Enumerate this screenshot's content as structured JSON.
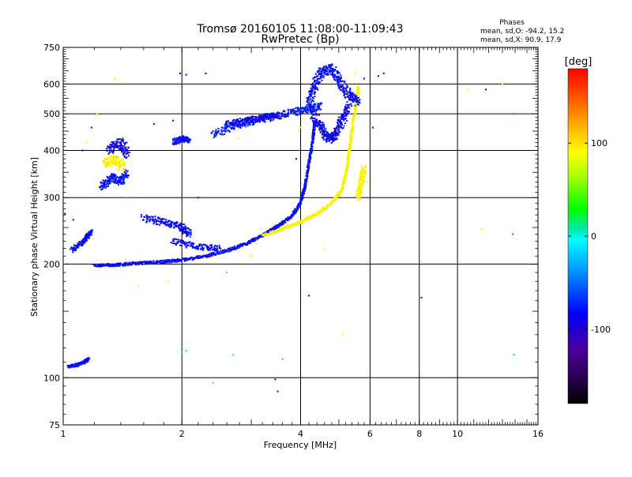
{
  "chart_data": {
    "type": "scatter",
    "title": "Tromsø 20160105 11:08:00-11:09:43",
    "subtitle": "RwPretec (Bp)",
    "xlabel": "Frequency [MHz]",
    "ylabel": "Stationary phase Virtual Height [km]",
    "x_scale": "log",
    "y_scale": "log",
    "xlim": [
      1,
      16
    ],
    "ylim": [
      75,
      750
    ],
    "x_ticks": [
      {
        "value": 1,
        "label": "1"
      },
      {
        "value": 2,
        "label": "2"
      },
      {
        "value": 4,
        "label": "4"
      },
      {
        "value": 6,
        "label": "6"
      },
      {
        "value": 8,
        "label": "8"
      },
      {
        "value": 10,
        "label": "10"
      },
      {
        "value": 16,
        "label": "16"
      }
    ],
    "y_ticks": [
      {
        "value": 75,
        "label": "75"
      },
      {
        "value": 100,
        "label": "100"
      },
      {
        "value": 200,
        "label": "200"
      },
      {
        "value": 300,
        "label": "300"
      },
      {
        "value": 400,
        "label": "400"
      },
      {
        "value": 500,
        "label": "500"
      },
      {
        "value": 600,
        "label": "600"
      },
      {
        "value": 750,
        "label": "750"
      }
    ],
    "grid": true,
    "stats": {
      "heading": "Phases",
      "line_o": "mean, sd,O: -94.2, 15.2",
      "line_x": "mean, sd,X:  90.9, 17.9"
    },
    "colorbar": {
      "label": "[deg]",
      "range": [
        -180,
        180
      ],
      "ticks": [
        {
          "value": 100,
          "label": "100"
        },
        {
          "value": 0,
          "label": "0"
        },
        {
          "value": -100,
          "label": "-100"
        }
      ]
    },
    "traces": [
      {
        "phase": -95,
        "spread": 0.006,
        "points": [
          [
            1.03,
            107
          ],
          [
            1.08,
            108
          ],
          [
            1.13,
            110
          ],
          [
            1.16,
            112
          ]
        ]
      },
      {
        "phase": -95,
        "spread": 0.01,
        "points": [
          [
            1.05,
            218
          ],
          [
            1.13,
            230
          ],
          [
            1.18,
            245
          ]
        ]
      },
      {
        "phase": -95,
        "spread": 0.006,
        "points": [
          [
            1.2,
            198
          ],
          [
            1.35,
            199
          ],
          [
            1.55,
            201
          ],
          [
            1.8,
            203
          ],
          [
            2.0,
            205
          ],
          [
            2.3,
            210
          ],
          [
            2.6,
            217
          ],
          [
            2.9,
            226
          ],
          [
            3.2,
            238
          ],
          [
            3.5,
            252
          ],
          [
            3.8,
            268
          ],
          [
            4.0,
            290
          ],
          [
            4.1,
            320
          ],
          [
            4.2,
            370
          ],
          [
            4.3,
            430
          ],
          [
            4.35,
            480
          ]
        ]
      },
      {
        "phase": 90,
        "spread": 0.006,
        "points": [
          [
            3.2,
            238
          ],
          [
            3.6,
            248
          ],
          [
            4.0,
            258
          ],
          [
            4.4,
            272
          ],
          [
            4.8,
            290
          ],
          [
            5.1,
            315
          ],
          [
            5.25,
            360
          ],
          [
            5.35,
            420
          ],
          [
            5.45,
            480
          ],
          [
            5.55,
            540
          ],
          [
            5.6,
            590
          ]
        ]
      },
      {
        "phase": -98,
        "spread": 0.02,
        "points": [
          [
            4.3,
            500
          ],
          [
            4.5,
            460
          ],
          [
            4.7,
            430
          ],
          [
            4.9,
            440
          ],
          [
            5.1,
            480
          ],
          [
            5.3,
            530
          ]
        ]
      },
      {
        "phase": -95,
        "spread": 0.02,
        "points": [
          [
            4.2,
            520
          ],
          [
            4.3,
            580
          ],
          [
            4.5,
            640
          ],
          [
            4.8,
            660
          ],
          [
            5.0,
            610
          ],
          [
            5.3,
            560
          ],
          [
            5.6,
            540
          ]
        ]
      },
      {
        "phase": -90,
        "spread": 0.015,
        "points": [
          [
            2.4,
            440
          ],
          [
            2.7,
            465
          ],
          [
            3.0,
            478
          ],
          [
            3.4,
            490
          ],
          [
            3.8,
            505
          ],
          [
            4.2,
            515
          ],
          [
            4.5,
            525
          ]
        ]
      },
      {
        "phase": -100,
        "spread": 0.012,
        "points": [
          [
            2.6,
            470
          ],
          [
            2.9,
            480
          ],
          [
            3.2,
            490
          ],
          [
            3.5,
            495
          ]
        ]
      },
      {
        "phase": -92,
        "spread": 0.015,
        "points": [
          [
            1.25,
            320
          ],
          [
            1.33,
            340
          ],
          [
            1.4,
            330
          ],
          [
            1.45,
            350
          ]
        ]
      },
      {
        "phase": -100,
        "spread": 0.02,
        "points": [
          [
            1.3,
            400
          ],
          [
            1.4,
            420
          ],
          [
            1.45,
            390
          ]
        ]
      },
      {
        "phase": 95,
        "spread": 0.02,
        "points": [
          [
            1.28,
            370
          ],
          [
            1.35,
            380
          ],
          [
            1.42,
            360
          ]
        ]
      },
      {
        "phase": -95,
        "spread": 0.012,
        "points": [
          [
            1.9,
            420
          ],
          [
            2.0,
            430
          ],
          [
            2.1,
            425
          ]
        ]
      },
      {
        "phase": -95,
        "spread": 0.015,
        "points": [
          [
            1.6,
            265
          ],
          [
            1.8,
            258
          ],
          [
            2.0,
            250
          ],
          [
            2.1,
            240
          ]
        ]
      },
      {
        "phase": -95,
        "spread": 0.012,
        "points": [
          [
            1.9,
            230
          ],
          [
            2.2,
            222
          ],
          [
            2.5,
            220
          ]
        ]
      },
      {
        "phase": 90,
        "spread": 0.015,
        "points": [
          [
            5.6,
            300
          ],
          [
            5.7,
            330
          ],
          [
            5.8,
            360
          ]
        ]
      }
    ],
    "scattered_points": [
      [
        1.35,
        620,
        80
      ],
      [
        1.98,
        640,
        -95
      ],
      [
        2.05,
        635,
        -95
      ],
      [
        1.7,
        470,
        -95
      ],
      [
        1.9,
        480,
        -95
      ],
      [
        1.22,
        500,
        90
      ],
      [
        1.18,
        460,
        -95
      ],
      [
        1.15,
        420,
        90
      ],
      [
        1.12,
        400,
        -95
      ],
      [
        1.01,
        272,
        -95
      ],
      [
        1.06,
        262,
        -95
      ],
      [
        1.45,
        298,
        90
      ],
      [
        2.0,
        117,
        -20
      ],
      [
        2.05,
        118,
        -20
      ],
      [
        2.7,
        115,
        -30
      ],
      [
        1.55,
        175,
        90
      ],
      [
        1.85,
        180,
        80
      ],
      [
        2.6,
        190,
        -20
      ],
      [
        2.4,
        97,
        130
      ],
      [
        3.5,
        92,
        -95
      ],
      [
        3.45,
        99,
        -100
      ],
      [
        3.6,
        112,
        -30
      ],
      [
        4.2,
        165,
        -95
      ],
      [
        5.1,
        130,
        90
      ],
      [
        4.6,
        220,
        90
      ],
      [
        6.1,
        460,
        -95
      ],
      [
        6.3,
        630,
        -95
      ],
      [
        6.5,
        640,
        -95
      ],
      [
        8.1,
        163,
        -95
      ],
      [
        10.6,
        580,
        90
      ],
      [
        11.5,
        248,
        90
      ],
      [
        11.8,
        580,
        -95
      ],
      [
        13.0,
        600,
        90
      ],
      [
        13.8,
        240,
        160
      ],
      [
        13.9,
        115,
        -30
      ],
      [
        13.9,
        500,
        160
      ],
      [
        4.8,
        610,
        90
      ],
      [
        5.5,
        640,
        90
      ],
      [
        5.9,
        330,
        90
      ],
      [
        2.2,
        300,
        -95
      ],
      [
        2.5,
        215,
        -30
      ],
      [
        4.0,
        460,
        90
      ],
      [
        3.9,
        380,
        -95
      ],
      [
        3.0,
        210,
        90
      ],
      [
        2.8,
        430,
        90
      ],
      [
        4.5,
        440,
        90
      ],
      [
        5.8,
        620,
        -95
      ],
      [
        2.3,
        640,
        -95
      ]
    ]
  }
}
